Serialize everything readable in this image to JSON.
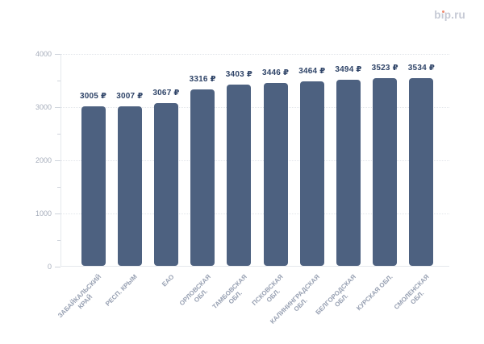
{
  "logo": {
    "text": "bip.ru",
    "accent_color": "#ED8A70",
    "text_color": "#C6CAD5"
  },
  "chart_data": {
    "type": "bar",
    "title": "",
    "categories": [
      "ЗАБАЙКАЛЬСКИЙ КРАЙ",
      "РЕСП. КРЫМ",
      "ЕАО",
      "ОРЛОВСКАЯ ОБЛ.",
      "ТАМБОВСКАЯ ОБЛ.",
      "ПСКОВСКАЯ ОБЛ.",
      "КАЛИНИНГРАДСКАЯ ОБЛ.",
      "БЕЛГОРОДСКАЯ ОБЛ.",
      "КУРСКАЯ ОБЛ.",
      "СМОЛЕНСКАЯ ОБЛ."
    ],
    "category_lines": [
      [
        "ЗАБАЙКАЛЬСКИЙ",
        "КРАЙ"
      ],
      [
        "РЕСП. КРЫМ"
      ],
      [
        "ЕАО"
      ],
      [
        "ОРЛОВСКАЯ",
        "ОБЛ."
      ],
      [
        "ТАМБОВСКАЯ",
        "ОБЛ."
      ],
      [
        "ПСКОВСКАЯ",
        "ОБЛ."
      ],
      [
        "КАЛИНИНГРАДСКАЯ",
        "ОБЛ."
      ],
      [
        "БЕЛГОРОДСКАЯ",
        "ОБЛ."
      ],
      [
        "КУРСКАЯ ОБЛ."
      ],
      [
        "СМОЛЕНСКАЯ",
        "ОБЛ."
      ]
    ],
    "values": [
      3005,
      3007,
      3067,
      3316,
      3403,
      3446,
      3464,
      3494,
      3523,
      3534
    ],
    "value_labels": [
      "3005 ₽",
      "3007 ₽",
      "3067 ₽",
      "3316 ₽",
      "3403 ₽",
      "3446 ₽",
      "3464 ₽",
      "3494 ₽",
      "3523 ₽",
      "3534 ₽"
    ],
    "currency": "₽",
    "xlabel": "",
    "ylabel": "",
    "ylim": [
      0,
      4000
    ],
    "yticks": [
      0,
      1000,
      2000,
      3000,
      4000
    ],
    "ytick_labels": [
      "0",
      "1000",
      "2000",
      "3000",
      "4000"
    ],
    "ytick_minor_step": 500,
    "grid": "horizontal dotted at major ticks",
    "legend": "none",
    "colors": {
      "background": "#FFFFFF",
      "bar": "#4D6180",
      "value_label": "#2F4468",
      "axis_line": "#E5E8ED",
      "gridline": "#E2E5EA",
      "tick": "#CFD4DC",
      "ytick_label": "#A6ADBB",
      "xtick_label": "#97A0B2"
    }
  }
}
